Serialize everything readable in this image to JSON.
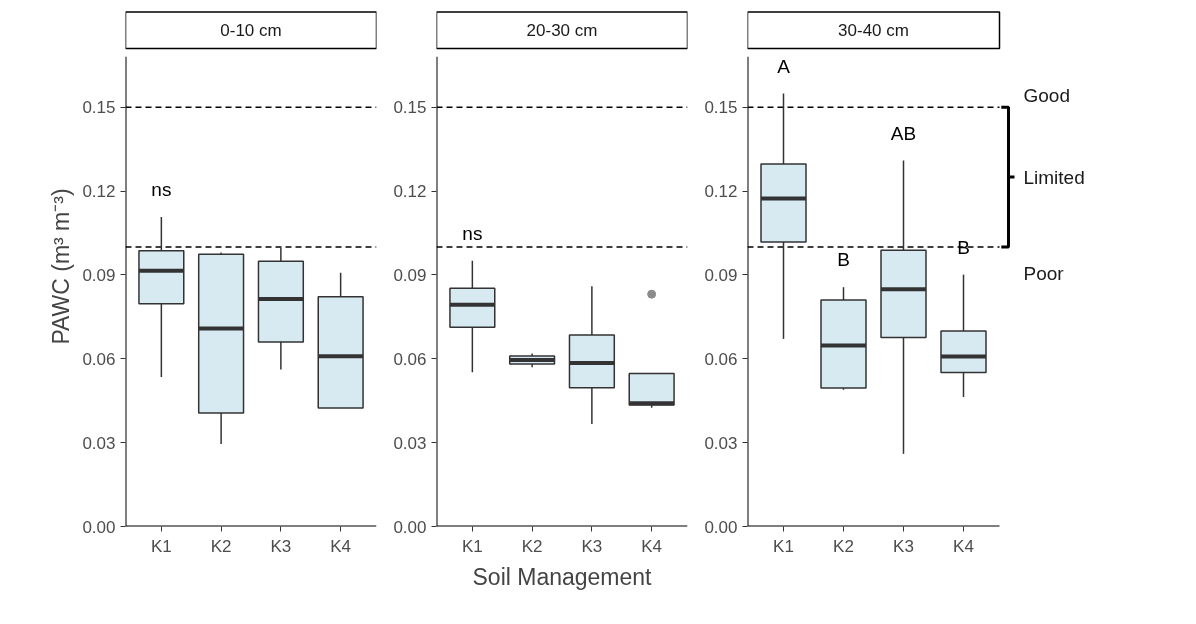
{
  "chart_data": [
    {
      "type": "box",
      "title": "0-10 cm",
      "ylabel": "PAWC (m³ m⁻³)",
      "categories": [
        "K1",
        "K2",
        "K3",
        "K4"
      ],
      "series": [
        {
          "color": "#d7eaf2",
          "boxes": [
            {
              "low": 0.0535,
              "q1": 0.0797,
              "median": 0.0915,
              "q3": 0.0986,
              "high": 0.1107
            },
            {
              "low": 0.0295,
              "q1": 0.0406,
              "median": 0.0708,
              "q3": 0.0974,
              "high": 0.098
            },
            {
              "low": 0.0562,
              "q1": 0.066,
              "median": 0.0814,
              "q3": 0.0949,
              "high": 0.0997
            },
            {
              "low": 0.0424,
              "q1": 0.0424,
              "median": 0.0609,
              "q3": 0.0822,
              "high": 0.0908
            }
          ]
        }
      ],
      "ylim": [
        0,
        0.168
      ],
      "yticks": [
        {
          "value": 0,
          "label": "0.00"
        },
        {
          "value": 0.03,
          "label": "0.03"
        },
        {
          "value": 0.06,
          "label": "0.06"
        },
        {
          "value": 0.09,
          "label": "0.09"
        },
        {
          "value": 0.12,
          "label": "0.12"
        },
        {
          "value": 0.15,
          "label": "0.15"
        }
      ],
      "ref_lines": [
        {
          "axis": "y",
          "value": 0.15,
          "line_style": "dashed",
          "color": "#000000"
        },
        {
          "axis": "y",
          "value": 0.1,
          "line_style": "dashed",
          "color": "#000000"
        }
      ],
      "annotations": [
        "ns"
      ]
    },
    {
      "type": "box",
      "title": "20-30 cm",
      "xlabel": "Soil Management",
      "categories": [
        "K1",
        "K2",
        "K3",
        "K4"
      ],
      "series": [
        {
          "color": "#d7eaf2",
          "boxes": [
            {
              "low": 0.0552,
              "q1": 0.0713,
              "median": 0.0793,
              "q3": 0.0852,
              "high": 0.0951
            },
            {
              "low": 0.057,
              "q1": 0.0581,
              "median": 0.0596,
              "q3": 0.061,
              "high": 0.0619
            },
            {
              "low": 0.0367,
              "q1": 0.0496,
              "median": 0.0585,
              "q3": 0.0685,
              "high": 0.0859
            },
            {
              "low": 0.0425,
              "q1": 0.0435,
              "median": 0.0441,
              "q3": 0.0547,
              "high": 0.0547,
              "outliers": [
                0.0831
              ]
            }
          ]
        }
      ],
      "ylim": [
        0,
        0.168
      ],
      "yticks": [
        {
          "value": 0,
          "label": "0.00"
        },
        {
          "value": 0.03,
          "label": "0.03"
        },
        {
          "value": 0.06,
          "label": "0.06"
        },
        {
          "value": 0.09,
          "label": "0.09"
        },
        {
          "value": 0.12,
          "label": "0.12"
        },
        {
          "value": 0.15,
          "label": "0.15"
        }
      ],
      "ref_lines": [
        {
          "axis": "y",
          "value": 0.15,
          "line_style": "dashed",
          "color": "#000000"
        },
        {
          "axis": "y",
          "value": 0.1,
          "line_style": "dashed",
          "color": "#000000"
        }
      ],
      "annotations": [
        "ns"
      ]
    },
    {
      "type": "box",
      "title": "30-40 cm",
      "categories": [
        "K1",
        "K2",
        "K3",
        "K4"
      ],
      "series": [
        {
          "color": "#d7eaf2",
          "boxes": [
            {
              "low": 0.0671,
              "q1": 0.1018,
              "median": 0.1173,
              "q3": 0.1297,
              "high": 0.1549
            },
            {
              "low": 0.0489,
              "q1": 0.0495,
              "median": 0.0647,
              "q3": 0.081,
              "high": 0.0856
            },
            {
              "low": 0.026,
              "q1": 0.0676,
              "median": 0.0849,
              "q3": 0.0988,
              "high": 0.1309
            },
            {
              "low": 0.0463,
              "q1": 0.0551,
              "median": 0.0608,
              "q3": 0.0699,
              "high": 0.0901
            }
          ]
        }
      ],
      "ylim": [
        0,
        0.168
      ],
      "yticks": [
        {
          "value": 0,
          "label": "0.00"
        },
        {
          "value": 0.03,
          "label": "0.03"
        },
        {
          "value": 0.06,
          "label": "0.06"
        },
        {
          "value": 0.09,
          "label": "0.09"
        },
        {
          "value": 0.12,
          "label": "0.12"
        },
        {
          "value": 0.15,
          "label": "0.15"
        }
      ],
      "ref_lines": [
        {
          "axis": "y",
          "value": 0.15,
          "line_style": "dashed",
          "color": "#000000"
        },
        {
          "axis": "y",
          "value": 0.1,
          "line_style": "dashed",
          "color": "#000000"
        }
      ],
      "annotations": [
        "A",
        "B",
        "AB",
        "B",
        "Good",
        "Limited",
        "Poor"
      ]
    }
  ]
}
